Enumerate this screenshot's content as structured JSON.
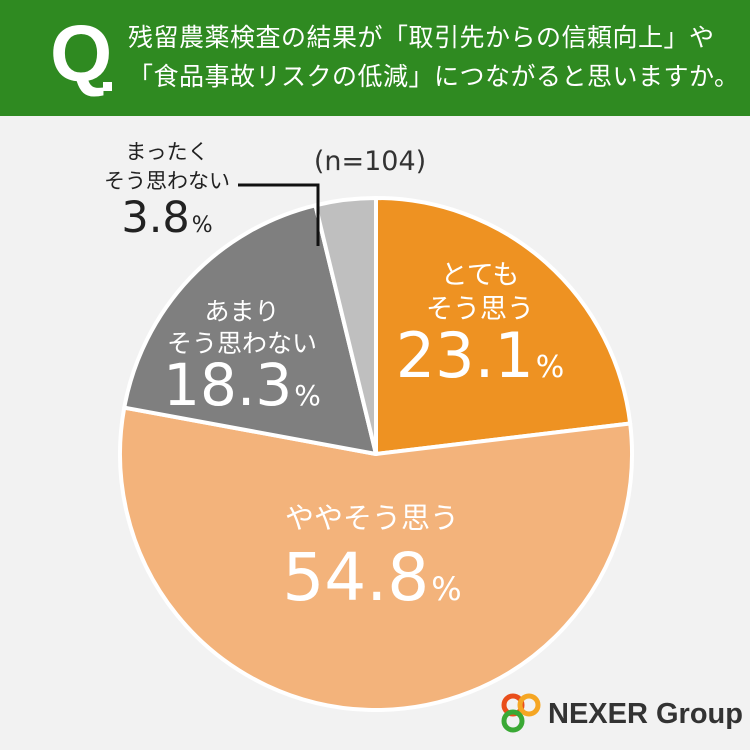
{
  "header": {
    "q_label": "Q",
    "question_line1": "残留農薬検査の結果が「取引先からの信頼向上」や",
    "question_line2": "「食品事故リスクの低減」につながると思いますか。",
    "bg_color": "#2f8a21"
  },
  "chart_data": {
    "type": "pie",
    "sample_note": "(n=104)",
    "unit": "%",
    "slices": [
      {
        "line1": "とても",
        "line2": "そう思う",
        "value": 23.1,
        "value_text": "23.1",
        "color": "#ee9222",
        "text_color": "#ffffff"
      },
      {
        "line1": "",
        "line2": "ややそう思う",
        "value": 54.8,
        "value_text": "54.8",
        "color": "#f3b37b",
        "text_color": "#ffffff"
      },
      {
        "line1": "あまり",
        "line2": "そう思わない",
        "value": 18.3,
        "value_text": "18.3",
        "color": "#7f7f7f",
        "text_color": "#ffffff"
      },
      {
        "line1": "まったく",
        "line2": "そう思わない",
        "value": 3.8,
        "value_text": "3.8",
        "color": "#bfbfbf",
        "text_color": "#222222"
      }
    ]
  },
  "logo": {
    "text": "NEXER Group",
    "icon_name": "nexer-rings-icon",
    "ring_colors": [
      "#e94e1b",
      "#f5a623",
      "#3aa935"
    ]
  }
}
